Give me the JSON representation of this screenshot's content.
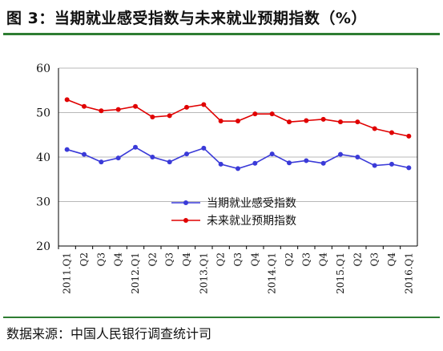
{
  "title": "图 3：当期就业感受指数与未来就业预期指数（%）",
  "source": "数据来源：中国人民银行调查统计司",
  "colors": {
    "accent_rule": "#2e7d32",
    "current": "#3a3ad8",
    "future": "#e00000"
  },
  "chart_data": {
    "type": "line",
    "categories": [
      "2011.Q1",
      "Q2",
      "Q3",
      "Q4",
      "2012.Q1",
      "Q2",
      "Q3",
      "Q4",
      "2013.Q1",
      "Q2",
      "Q3",
      "Q4",
      "2014.Q1",
      "Q2",
      "Q3",
      "Q4",
      "2015.Q1",
      "Q2",
      "Q3",
      "Q4",
      "2016.Q1"
    ],
    "series": [
      {
        "name": "当期就业感受指数",
        "color": "#3a3ad8",
        "values": [
          41.7,
          40.6,
          38.9,
          39.8,
          42.2,
          40.0,
          38.9,
          40.7,
          42.0,
          38.4,
          37.4,
          38.6,
          40.7,
          38.7,
          39.2,
          38.6,
          40.6,
          40.0,
          38.1,
          38.4,
          37.6
        ]
      },
      {
        "name": "未来就业预期指数",
        "color": "#e00000",
        "values": [
          52.9,
          51.4,
          50.4,
          50.7,
          51.4,
          49.0,
          49.3,
          51.2,
          51.8,
          48.1,
          48.1,
          49.7,
          49.7,
          47.9,
          48.2,
          48.5,
          47.9,
          47.9,
          46.4,
          45.5,
          44.7
        ]
      }
    ],
    "y_ticks": [
      20,
      30,
      40,
      50,
      60
    ],
    "ylim": [
      20,
      60
    ],
    "grid": true,
    "legend_position": "lower-right-center"
  }
}
